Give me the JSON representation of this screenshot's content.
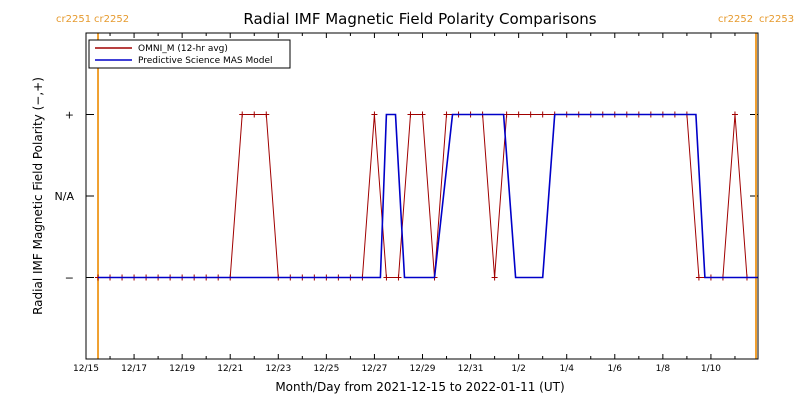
{
  "chart_data": {
    "type": "line",
    "title": "Radial IMF Magnetic Field Polarity Comparisons",
    "xlabel": "Month/Day from 2021-12-15 to 2022-01-11 (UT)",
    "ylabel": "Radial IMF Magnetic Field Polarity (−,+)",
    "x_tick_labels": [
      "12/15",
      "12/17",
      "12/19",
      "12/21",
      "12/23",
      "12/25",
      "12/27",
      "12/29",
      "12/31",
      "1/2",
      "1/4",
      "1/6",
      "1/8",
      "1/10"
    ],
    "x_tick_dates": [
      "2021-12-15",
      "2021-12-17",
      "2021-12-19",
      "2021-12-21",
      "2021-12-23",
      "2021-12-25",
      "2021-12-27",
      "2021-12-29",
      "2021-12-31",
      "2022-01-02",
      "2022-01-04",
      "2022-01-06",
      "2022-01-08",
      "2022-01-10"
    ],
    "x_range": [
      "2021-12-15",
      "2022-01-11T23:00"
    ],
    "y_tick_labels": [
      "−",
      "N/A",
      "+"
    ],
    "y_tick_values": [
      -1,
      0,
      1
    ],
    "y_range": [
      -2,
      2
    ],
    "grid": false,
    "legend_position": "top-left",
    "carrington_markers": [
      {
        "date": "2021-12-15T12:00",
        "left_label": "cr2251",
        "right_label": "cr2252",
        "color": "#f0a030"
      },
      {
        "date": "2022-01-11T21:00",
        "left_label": "cr2252",
        "right_label": "cr2253",
        "color": "#f0a030"
      }
    ],
    "series": [
      {
        "name": "OMNI_M (12-hr avg)",
        "color": "#a00000",
        "marker": "plus",
        "points": [
          [
            "2021-12-15T12:00",
            -1
          ],
          [
            "2021-12-16T00:00",
            -1
          ],
          [
            "2021-12-16T12:00",
            -1
          ],
          [
            "2021-12-17T00:00",
            -1
          ],
          [
            "2021-12-17T12:00",
            -1
          ],
          [
            "2021-12-18T00:00",
            -1
          ],
          [
            "2021-12-18T12:00",
            -1
          ],
          [
            "2021-12-19T00:00",
            -1
          ],
          [
            "2021-12-19T12:00",
            -1
          ],
          [
            "2021-12-20T00:00",
            -1
          ],
          [
            "2021-12-20T12:00",
            -1
          ],
          [
            "2021-12-21T00:00",
            -1
          ],
          [
            "2021-12-21T12:00",
            1
          ],
          [
            "2021-12-22T00:00",
            1
          ],
          [
            "2021-12-22T12:00",
            1
          ],
          [
            "2021-12-23T00:00",
            -1
          ],
          [
            "2021-12-23T12:00",
            -1
          ],
          [
            "2021-12-24T00:00",
            -1
          ],
          [
            "2021-12-24T12:00",
            -1
          ],
          [
            "2021-12-25T00:00",
            -1
          ],
          [
            "2021-12-25T12:00",
            -1
          ],
          [
            "2021-12-26T00:00",
            -1
          ],
          [
            "2021-12-26T12:00",
            -1
          ],
          [
            "2021-12-27T00:00",
            1
          ],
          [
            "2021-12-27T12:00",
            -1
          ],
          [
            "2021-12-28T00:00",
            -1
          ],
          [
            "2021-12-28T12:00",
            1
          ],
          [
            "2021-12-29T00:00",
            1
          ],
          [
            "2021-12-29T12:00",
            -1
          ],
          [
            "2021-12-30T00:00",
            1
          ],
          [
            "2021-12-30T12:00",
            1
          ],
          [
            "2021-12-31T00:00",
            1
          ],
          [
            "2021-12-31T12:00",
            1
          ],
          [
            "2022-01-01T00:00",
            -1
          ],
          [
            "2022-01-01T12:00",
            1
          ],
          [
            "2022-01-02T00:00",
            1
          ],
          [
            "2022-01-02T12:00",
            1
          ],
          [
            "2022-01-03T00:00",
            1
          ],
          [
            "2022-01-03T12:00",
            1
          ],
          [
            "2022-01-04T00:00",
            1
          ],
          [
            "2022-01-04T12:00",
            1
          ],
          [
            "2022-01-05T00:00",
            1
          ],
          [
            "2022-01-05T12:00",
            1
          ],
          [
            "2022-01-06T00:00",
            1
          ],
          [
            "2022-01-06T12:00",
            1
          ],
          [
            "2022-01-07T00:00",
            1
          ],
          [
            "2022-01-07T12:00",
            1
          ],
          [
            "2022-01-08T00:00",
            1
          ],
          [
            "2022-01-08T12:00",
            1
          ],
          [
            "2022-01-09T00:00",
            1
          ],
          [
            "2022-01-09T12:00",
            -1
          ],
          [
            "2022-01-10T00:00",
            -1
          ],
          [
            "2022-01-10T12:00",
            -1
          ],
          [
            "2022-01-11T00:00",
            1
          ],
          [
            "2022-01-11T12:00",
            -1
          ]
        ]
      },
      {
        "name": "Predictive Science MAS Model",
        "color": "#0000c8",
        "marker": "none",
        "points": [
          [
            "2021-12-15T12:00",
            -1
          ],
          [
            "2021-12-27T06:00",
            -1
          ],
          [
            "2021-12-27T12:00",
            1
          ],
          [
            "2021-12-27T21:00",
            1
          ],
          [
            "2021-12-28T06:00",
            -1
          ],
          [
            "2021-12-29T12:00",
            -1
          ],
          [
            "2021-12-30T06:00",
            1
          ],
          [
            "2022-01-01T09:00",
            1
          ],
          [
            "2022-01-01T21:00",
            -1
          ],
          [
            "2022-01-03T00:00",
            -1
          ],
          [
            "2022-01-03T12:00",
            1
          ],
          [
            "2022-01-09T09:00",
            1
          ],
          [
            "2022-01-09T18:00",
            -1
          ],
          [
            "2022-01-11T23:00",
            -1
          ]
        ]
      }
    ]
  }
}
